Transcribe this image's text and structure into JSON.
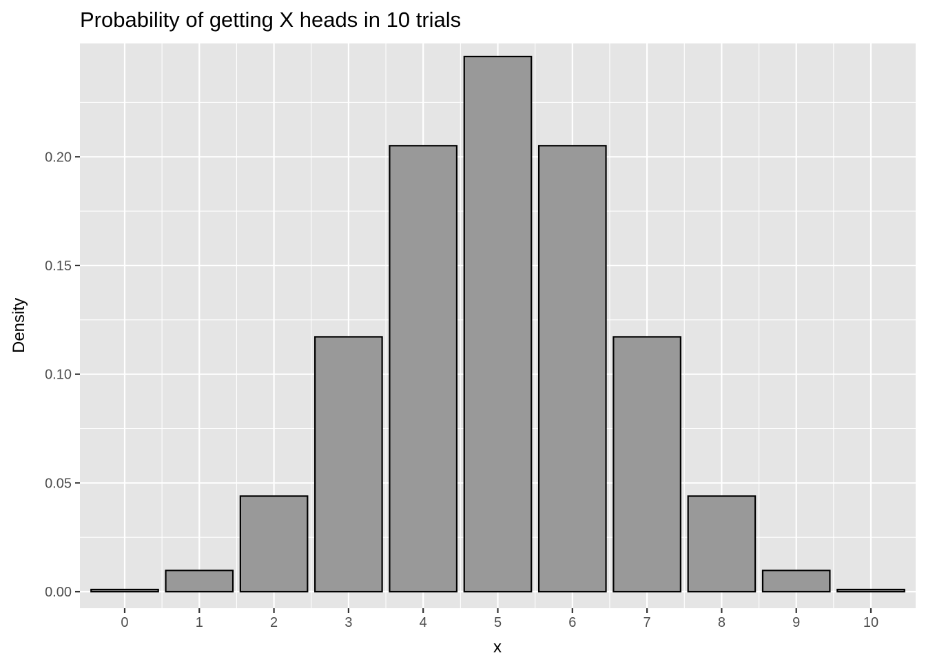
{
  "chart_data": {
    "type": "bar",
    "title": "Probability of getting X heads in 10 trials",
    "xlabel": "x",
    "ylabel": "Density",
    "categories": [
      "0",
      "1",
      "2",
      "3",
      "4",
      "5",
      "6",
      "7",
      "8",
      "9",
      "10"
    ],
    "values": [
      0.00098,
      0.00977,
      0.04395,
      0.11719,
      0.20508,
      0.24609,
      0.20508,
      0.11719,
      0.04395,
      0.00977,
      0.00098
    ],
    "ylim": [
      -0.0076,
      0.2521
    ],
    "yticks": [
      0.0,
      0.05,
      0.1,
      0.15,
      0.2
    ],
    "ytick_labels": [
      "0.00",
      "0.05",
      "0.10",
      "0.15",
      "0.20"
    ],
    "grid": true,
    "colors": {
      "panel": "#e5e5e5",
      "grid": "#ffffff",
      "bar_fill": "#999999",
      "bar_outline": "#000000",
      "tick": "#333333"
    }
  }
}
